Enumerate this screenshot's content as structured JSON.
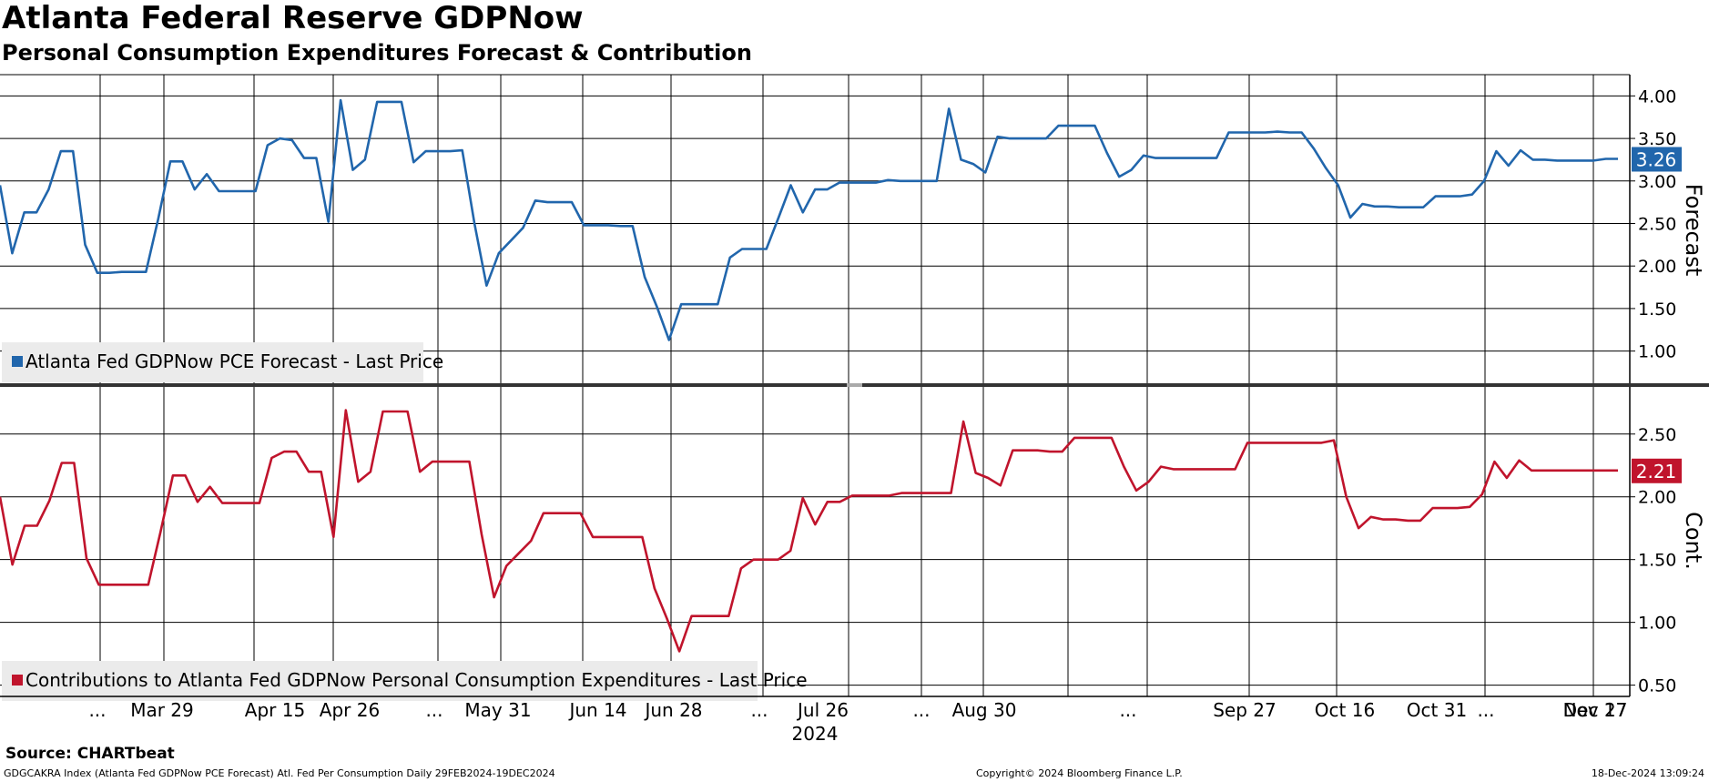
{
  "header": {
    "title": "Atlanta Federal Reserve GDPNow",
    "subtitle": "Personal Consumption Expenditures Forecast & Contribution"
  },
  "footer": {
    "source": "Source: CHARTbeat",
    "ticker_line": "GDGCAKRA Index (Atlanta Fed GDPNow PCE Forecast) Atl. Fed Per Consumption  Daily 29FEB2024-19DEC2024",
    "copyright": "Copyright© 2024 Bloomberg Finance L.P.",
    "timestamp": "18-Dec-2024 13:09:24"
  },
  "chart_data": [
    {
      "type": "line",
      "panel": "top",
      "ylabel": "Forecast",
      "ylim": [
        0.6,
        4.25
      ],
      "yticks": [
        "4.00",
        "3.50",
        "3.00",
        "2.50",
        "2.00",
        "1.50",
        "1.00"
      ],
      "last_value_label": "3.26",
      "legend_position": "bottom-left",
      "grid": true,
      "color": "#2166ac",
      "series": [
        {
          "name": "Atlanta Fed GDPNow PCE Forecast - Last Price",
          "values": [
            2.95,
            2.15,
            2.63,
            2.63,
            2.9,
            3.35,
            3.35,
            2.25,
            1.92,
            1.92,
            1.93,
            1.93,
            1.93,
            2.55,
            3.23,
            3.23,
            2.9,
            3.08,
            2.88,
            2.88,
            2.88,
            2.88,
            3.42,
            3.5,
            3.48,
            3.27,
            3.27,
            2.52,
            3.95,
            3.13,
            3.25,
            3.93,
            3.93,
            3.93,
            3.22,
            3.35,
            3.35,
            3.35,
            3.36,
            2.5,
            1.77,
            2.15,
            2.3,
            2.45,
            2.77,
            2.75,
            2.75,
            2.75,
            2.48,
            2.48,
            2.48,
            2.47,
            2.47,
            1.87,
            1.52,
            1.13,
            1.55,
            1.55,
            1.55,
            1.55,
            2.1,
            2.2,
            2.2,
            2.2,
            2.57,
            2.95,
            2.63,
            2.9,
            2.9,
            2.98,
            2.98,
            2.98,
            2.98,
            3.01,
            3.0,
            3.0,
            3.0,
            3.0,
            3.85,
            3.25,
            3.2,
            3.1,
            3.52,
            3.5,
            3.5,
            3.5,
            3.5,
            3.65,
            3.65,
            3.65,
            3.65,
            3.33,
            3.05,
            3.13,
            3.3,
            3.27,
            3.27,
            3.27,
            3.27,
            3.27,
            3.27,
            3.57,
            3.57,
            3.57,
            3.57,
            3.58,
            3.57,
            3.57,
            3.38,
            3.15,
            2.95,
            2.57,
            2.73,
            2.7,
            2.7,
            2.69,
            2.69,
            2.69,
            2.82,
            2.82,
            2.82,
            2.84,
            3.0,
            3.35,
            3.18,
            3.36,
            3.25,
            3.25,
            3.24,
            3.24,
            3.24,
            3.24,
            3.26,
            3.26
          ]
        }
      ]
    },
    {
      "type": "line",
      "panel": "bottom",
      "ylabel": "Cont.",
      "ylim": [
        0.41,
        2.89
      ],
      "yticks": [
        "2.50",
        "2.00",
        "1.50",
        "1.00",
        "0.50"
      ],
      "last_value_label": "2.21",
      "legend_position": "bottom-left",
      "grid": true,
      "color": "#c0142c",
      "series": [
        {
          "name": "Contributions to Atlanta Fed GDPNow Personal Consumption Expenditures - Last Price",
          "values": [
            2.0,
            1.46,
            1.77,
            1.77,
            1.97,
            2.27,
            2.27,
            1.51,
            1.3,
            1.3,
            1.3,
            1.3,
            1.3,
            1.72,
            2.17,
            2.17,
            1.96,
            2.08,
            1.95,
            1.95,
            1.95,
            1.95,
            2.31,
            2.36,
            2.36,
            2.2,
            2.2,
            1.68,
            2.69,
            2.12,
            2.2,
            2.68,
            2.68,
            2.68,
            2.2,
            2.28,
            2.28,
            2.28,
            2.28,
            1.7,
            1.2,
            1.45,
            1.55,
            1.65,
            1.87,
            1.87,
            1.87,
            1.87,
            1.68,
            1.68,
            1.68,
            1.68,
            1.68,
            1.27,
            1.03,
            0.77,
            1.05,
            1.05,
            1.05,
            1.05,
            1.43,
            1.5,
            1.5,
            1.5,
            1.57,
            1.99,
            1.78,
            1.96,
            1.96,
            2.01,
            2.01,
            2.01,
            2.01,
            2.03,
            2.03,
            2.03,
            2.03,
            2.03,
            2.6,
            2.19,
            2.15,
            2.09,
            2.37,
            2.37,
            2.37,
            2.36,
            2.36,
            2.47,
            2.47,
            2.47,
            2.47,
            2.24,
            2.05,
            2.12,
            2.24,
            2.22,
            2.22,
            2.22,
            2.22,
            2.22,
            2.22,
            2.43,
            2.43,
            2.43,
            2.43,
            2.43,
            2.43,
            2.43,
            2.45,
            2.0,
            1.75,
            1.84,
            1.82,
            1.82,
            1.81,
            1.81,
            1.91,
            1.91,
            1.91,
            1.92,
            2.02,
            2.28,
            2.15,
            2.29,
            2.21,
            2.21,
            2.21,
            2.21,
            2.21,
            2.21,
            2.21,
            2.21
          ]
        }
      ]
    }
  ],
  "x_axis": {
    "tick_labels": [
      "...",
      "Mar 29",
      "Apr 15",
      "Apr 26",
      "...",
      "May 31",
      "Jun 14",
      "Jun 28",
      "...",
      "Jul 26",
      "...",
      "Aug 30",
      "...",
      "Sep 27",
      "Oct 16",
      "Oct 31",
      "...",
      "Nov 27",
      "Dec 17"
    ],
    "year_label": "2024"
  }
}
